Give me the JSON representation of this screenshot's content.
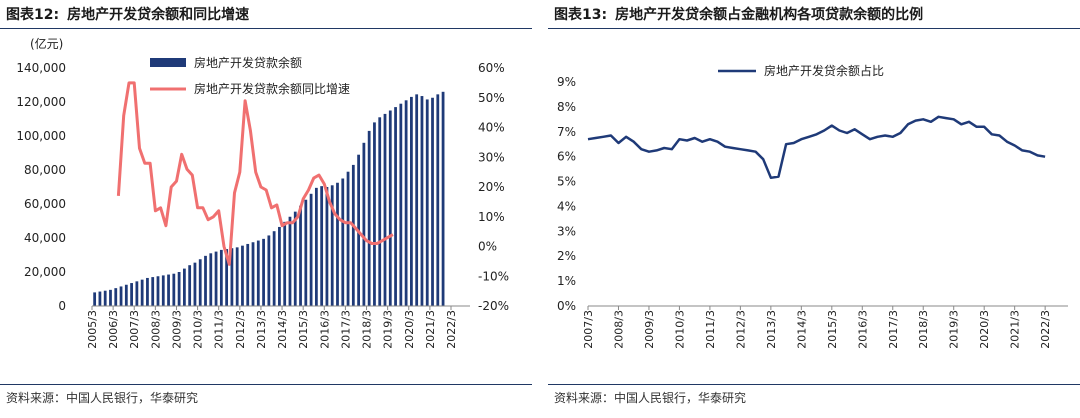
{
  "left": {
    "title_num": "图表12:",
    "title_text": "房地产开发贷余额和同比增速",
    "source": "资料来源：中国人民银行，华泰研究"
  },
  "right": {
    "title_num": "图表13:",
    "title_text": "房地产开发贷余额占金融机构各项贷款余额的比例",
    "source": "资料来源：中国人民银行，华泰研究"
  },
  "chart_data": [
    {
      "type": "bar",
      "ylabel_left": "(亿元)",
      "ylim_left": [
        0,
        140000
      ],
      "yticks_left": [
        "0",
        "20,000",
        "40,000",
        "60,000",
        "80,000",
        "100,000",
        "120,000",
        "140,000"
      ],
      "ylim_right": [
        -20,
        60
      ],
      "yticks_right": [
        "-20%",
        "-10%",
        "0%",
        "10%",
        "20%",
        "30%",
        "40%",
        "50%",
        "60%"
      ],
      "xticks": [
        "2005/3",
        "2006/3",
        "2007/3",
        "2008/3",
        "2009/3",
        "2010/3",
        "2011/3",
        "2012/3",
        "2013/3",
        "2014/3",
        "2015/3",
        "2016/3",
        "2017/3",
        "2018/3",
        "2019/3",
        "2020/3",
        "2021/3",
        "2022/3"
      ],
      "legend_position": "top-center",
      "colors": {
        "bars": "#1f3a78",
        "line": "#f07070"
      },
      "series": [
        {
          "name": "房地产开发贷款余额",
          "type": "bar",
          "axis": "left",
          "values": [
            8000,
            8500,
            9000,
            9500,
            10500,
            11500,
            12500,
            13500,
            14500,
            15500,
            16500,
            17000,
            17500,
            18000,
            18500,
            19000,
            20000,
            22000,
            24000,
            25500,
            27500,
            29500,
            31000,
            32000,
            33000,
            33500,
            34000,
            34500,
            35500,
            36500,
            37500,
            38500,
            39500,
            41500,
            44000,
            46500,
            49500,
            52500,
            55500,
            59000,
            62500,
            66000,
            69500,
            70500,
            70000,
            71000,
            72500,
            75000,
            79000,
            83000,
            89000,
            96000,
            103000,
            108000,
            111000,
            113000,
            115000,
            117000,
            119000,
            121000,
            123000,
            124500,
            123500,
            121500,
            122500,
            124500,
            126000
          ]
        },
        {
          "name": "房地产开发贷款余额同比增速",
          "type": "line",
          "axis": "right",
          "x_start": 2006.25,
          "x_step": 0.25,
          "values": [
            17,
            44,
            55,
            55,
            33,
            28,
            28,
            12,
            13,
            7,
            20,
            22,
            31,
            26,
            24,
            13,
            13,
            9,
            10,
            12,
            0,
            -6,
            18,
            25,
            49,
            39,
            25,
            20,
            19,
            13,
            14,
            7,
            8,
            8,
            10,
            16,
            19,
            23,
            24,
            21,
            15,
            11,
            9,
            8,
            8,
            6,
            4,
            2,
            1,
            1,
            2,
            3,
            4
          ]
        }
      ]
    },
    {
      "type": "line",
      "ylim": [
        0,
        9
      ],
      "yticks": [
        "0%",
        "1%",
        "2%",
        "3%",
        "4%",
        "5%",
        "6%",
        "7%",
        "8%",
        "9%"
      ],
      "xticks": [
        "2007/3",
        "2008/3",
        "2009/3",
        "2010/3",
        "2011/3",
        "2012/3",
        "2013/3",
        "2014/3",
        "2015/3",
        "2016/3",
        "2017/3",
        "2018/3",
        "2019/3",
        "2020/3",
        "2021/3",
        "2022/3"
      ],
      "legend_position": "top-center",
      "colors": {
        "line": "#1f3a78"
      },
      "series": [
        {
          "name": "房地产开发贷余额占比",
          "x_start": 2007.0,
          "x_step": 0.25,
          "values": [
            6.7,
            6.75,
            6.8,
            6.85,
            6.55,
            6.8,
            6.6,
            6.3,
            6.2,
            6.25,
            6.35,
            6.3,
            6.7,
            6.65,
            6.75,
            6.6,
            6.7,
            6.6,
            6.4,
            6.35,
            6.3,
            6.25,
            6.2,
            5.9,
            5.15,
            5.2,
            6.5,
            6.55,
            6.7,
            6.8,
            6.9,
            7.05,
            7.25,
            7.05,
            6.95,
            7.1,
            6.9,
            6.7,
            6.8,
            6.85,
            6.8,
            6.95,
            7.3,
            7.45,
            7.5,
            7.4,
            7.6,
            7.55,
            7.5,
            7.3,
            7.4,
            7.2,
            7.2,
            6.9,
            6.85,
            6.6,
            6.45,
            6.25,
            6.2,
            6.05,
            6.0
          ]
        }
      ]
    }
  ]
}
